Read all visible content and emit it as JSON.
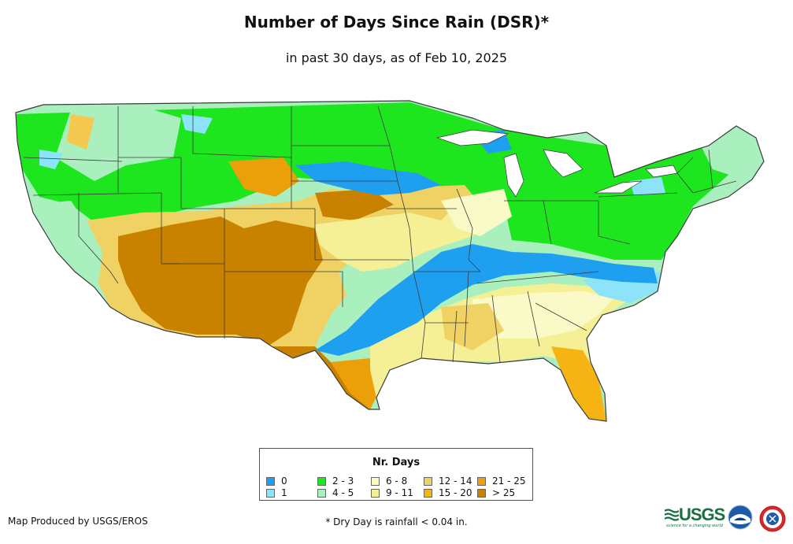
{
  "title": "Number of Days Since Rain (DSR)*",
  "subtitle": "in past 30 days, as of Feb 10, 2025",
  "legend": {
    "title": "Nr. Days",
    "items": [
      {
        "label": "0",
        "color": "#1e9ff0"
      },
      {
        "label": "1",
        "color": "#8de4fa"
      },
      {
        "label": "2 - 3",
        "color": "#1ee61e"
      },
      {
        "label": "4 - 5",
        "color": "#aaf0be"
      },
      {
        "label": "6 - 8",
        "color": "#fafac8"
      },
      {
        "label": "9 - 11",
        "color": "#f5f096"
      },
      {
        "label": "12 - 14",
        "color": "#f0d264"
      },
      {
        "label": "15 - 20",
        "color": "#f5b414"
      },
      {
        "label": "21 - 25",
        "color": "#eba00a"
      },
      {
        "label": "> 25",
        "color": "#c88200"
      }
    ]
  },
  "credit": "Map Produced by USGS/EROS",
  "footnote": "* Dry Day is rainfall < 0.04 in.",
  "logos": {
    "usgs": "USGS",
    "usgs_tagline": "science for a changing world",
    "noaa": "noaa-logo",
    "nws": "nws-logo"
  },
  "map_icon": "conus-dsr-map"
}
